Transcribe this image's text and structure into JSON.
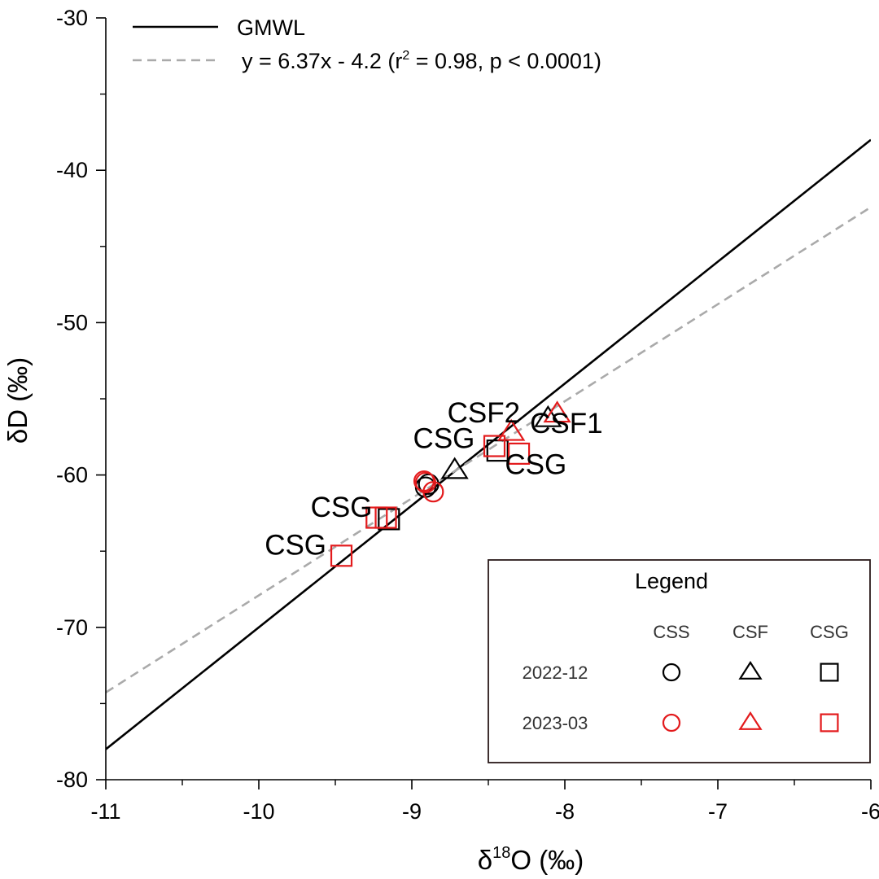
{
  "chart_data": {
    "type": "scatter",
    "xlabel_main": "δ",
    "xlabel_sup": "18",
    "xlabel_rest": "O (‰)",
    "ylabel": "δD (‰)",
    "xlim": [
      -11,
      -6
    ],
    "ylim": [
      -80,
      -30
    ],
    "xticks": [
      -11,
      -10,
      -9,
      -8,
      -7,
      -6
    ],
    "yticks": [
      -80,
      -70,
      -60,
      -50,
      -40,
      -30
    ],
    "lines": [
      {
        "name": "GMWL",
        "label": "GMWL",
        "slope": 8,
        "intercept": 10,
        "color": "#000000",
        "dash": "solid"
      },
      {
        "name": "regression",
        "label_pre": "y = 6.37x - 4.2 (r",
        "label_sup": "2",
        "label_post": " = 0.98, p < 0.0001)",
        "slope": 6.37,
        "intercept": -4.2,
        "color": "#aaaaaa",
        "dash": "dashed"
      }
    ],
    "series": [
      {
        "name": "2022-12 CSS",
        "marker": "circle",
        "color": "#000000",
        "points": [
          [
            -8.91,
            -60.8
          ],
          [
            -8.89,
            -60.6
          ]
        ]
      },
      {
        "name": "2022-12 CSF",
        "marker": "triangle",
        "color": "#000000",
        "points": [
          [
            -8.72,
            -59.7
          ],
          [
            -8.11,
            -56.3
          ]
        ]
      },
      {
        "name": "2022-12 CSG",
        "marker": "square",
        "color": "#000000",
        "points": [
          [
            -9.15,
            -62.9
          ],
          [
            -8.44,
            -58.4
          ]
        ]
      },
      {
        "name": "2023-03 CSS",
        "marker": "circle",
        "color": "#e31a1c",
        "points": [
          [
            -8.92,
            -60.4
          ],
          [
            -8.86,
            -61.1
          ],
          [
            -8.91,
            -60.5
          ]
        ]
      },
      {
        "name": "2023-03 CSF",
        "marker": "triangle",
        "color": "#e31a1c",
        "points": [
          [
            -8.35,
            -57.2
          ],
          [
            -8.05,
            -56.0
          ]
        ]
      },
      {
        "name": "2023-03 CSG",
        "marker": "square",
        "color": "#e31a1c",
        "points": [
          [
            -9.46,
            -65.3
          ],
          [
            -9.23,
            -62.8
          ],
          [
            -9.17,
            -62.8
          ],
          [
            -8.46,
            -58.1
          ],
          [
            -8.3,
            -58.6
          ]
        ]
      }
    ],
    "annotations": [
      {
        "text": "CSF2",
        "x": -8.53,
        "y": -55.9
      },
      {
        "text": "CSF1",
        "x": -7.99,
        "y": -56.6
      },
      {
        "text": "CSG",
        "x": -8.79,
        "y": -57.6
      },
      {
        "text": "CSG",
        "x": -8.19,
        "y": -59.3
      },
      {
        "text": "CSG",
        "x": -9.46,
        "y": -62.1
      },
      {
        "text": "CSG",
        "x": -9.76,
        "y": -64.6
      }
    ],
    "legend": {
      "title": "Legend",
      "placement": "bottom-right",
      "columns": [
        "CSS",
        "CSF",
        "CSG"
      ],
      "rows": [
        "2022-12",
        "2023-03"
      ],
      "row_colors": [
        "#000000",
        "#e31a1c"
      ],
      "markers": [
        "circle",
        "triangle",
        "square"
      ]
    }
  }
}
